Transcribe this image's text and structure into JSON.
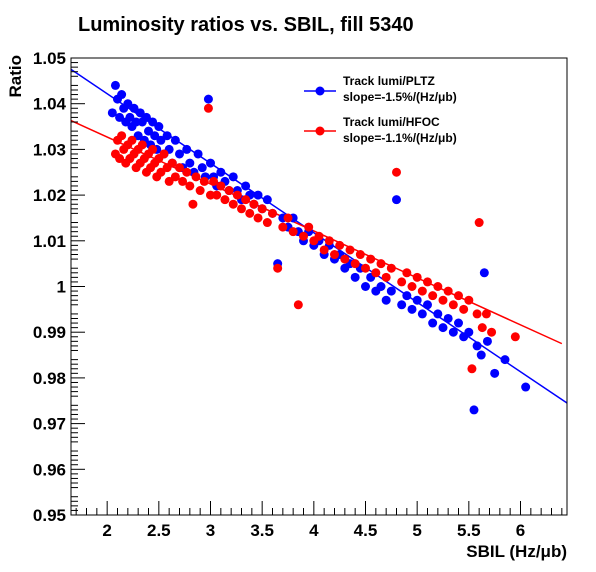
{
  "chart_data": {
    "type": "scatter",
    "title": "Luminosity ratios vs. SBIL, fill 5340",
    "xlabel": "SBIL (Hz/μb)",
    "ylabel": "Ratio",
    "xlim": [
      1.65,
      6.45
    ],
    "ylim": [
      0.95,
      1.05
    ],
    "xticks": [
      "2",
      "2.5",
      "3",
      "3.5",
      "4",
      "4.5",
      "5",
      "5.5",
      "6"
    ],
    "yticks": [
      "0.95",
      "0.96",
      "0.97",
      "0.98",
      "0.99",
      "1",
      "1.01",
      "1.02",
      "1.03",
      "1.04",
      "1.05"
    ],
    "grid": false,
    "legend_position": "top-right",
    "series": [
      {
        "name": "Track lumi/PLTZ",
        "slope_label": "slope=-1.5%/(Hz/μb)",
        "color": "#0000ff",
        "fit": {
          "x": [
            1.65,
            6.45
          ],
          "y": [
            1.0475,
            0.9745
          ]
        },
        "points": [
          [
            2.05,
            1.038
          ],
          [
            2.08,
            1.044
          ],
          [
            2.1,
            1.041
          ],
          [
            2.12,
            1.037
          ],
          [
            2.14,
            1.042
          ],
          [
            2.16,
            1.039
          ],
          [
            2.18,
            1.036
          ],
          [
            2.2,
            1.04
          ],
          [
            2.22,
            1.037
          ],
          [
            2.24,
            1.035
          ],
          [
            2.26,
            1.039
          ],
          [
            2.28,
            1.036
          ],
          [
            2.3,
            1.033
          ],
          [
            2.32,
            1.038
          ],
          [
            2.34,
            1.036
          ],
          [
            2.36,
            1.032
          ],
          [
            2.38,
            1.037
          ],
          [
            2.4,
            1.034
          ],
          [
            2.42,
            1.031
          ],
          [
            2.44,
            1.036
          ],
          [
            2.46,
            1.033
          ],
          [
            2.48,
            1.03
          ],
          [
            2.5,
            1.035
          ],
          [
            2.52,
            1.032
          ],
          [
            2.55,
            1.029
          ],
          [
            2.58,
            1.033
          ],
          [
            2.6,
            1.03
          ],
          [
            2.63,
            1.027
          ],
          [
            2.66,
            1.032
          ],
          [
            2.7,
            1.029
          ],
          [
            2.73,
            1.026
          ],
          [
            2.77,
            1.03
          ],
          [
            2.8,
            1.027
          ],
          [
            2.84,
            1.025
          ],
          [
            2.88,
            1.029
          ],
          [
            2.92,
            1.026
          ],
          [
            2.95,
            1.024
          ],
          [
            2.98,
            1.041
          ],
          [
            3.0,
            1.027
          ],
          [
            3.03,
            1.024
          ],
          [
            3.06,
            1.022
          ],
          [
            3.1,
            1.025
          ],
          [
            3.14,
            1.023
          ],
          [
            3.18,
            1.021
          ],
          [
            3.22,
            1.024
          ],
          [
            3.26,
            1.021
          ],
          [
            3.3,
            1.019
          ],
          [
            3.34,
            1.022
          ],
          [
            3.38,
            1.02
          ],
          [
            3.42,
            1.018
          ],
          [
            3.46,
            1.02
          ],
          [
            3.5,
            1.017
          ],
          [
            3.55,
            1.019
          ],
          [
            3.6,
            1.016
          ],
          [
            3.65,
            1.005
          ],
          [
            3.7,
            1.015
          ],
          [
            3.75,
            1.013
          ],
          [
            3.8,
            1.015
          ],
          [
            3.85,
            1.012
          ],
          [
            3.9,
            1.01
          ],
          [
            3.95,
            1.012
          ],
          [
            4.0,
            1.009
          ],
          [
            4.05,
            1.01
          ],
          [
            4.1,
            1.007
          ],
          [
            4.15,
            1.009
          ],
          [
            4.2,
            1.006
          ],
          [
            4.25,
            1.007
          ],
          [
            4.3,
            1.004
          ],
          [
            4.35,
            1.005
          ],
          [
            4.4,
            1.002
          ],
          [
            4.45,
            1.004
          ],
          [
            4.5,
            1.0
          ],
          [
            4.55,
            1.002
          ],
          [
            4.6,
            0.999
          ],
          [
            4.65,
            1.0
          ],
          [
            4.7,
            0.997
          ],
          [
            4.75,
            0.999
          ],
          [
            4.8,
            1.019
          ],
          [
            4.85,
            0.996
          ],
          [
            4.9,
            0.998
          ],
          [
            4.95,
            0.995
          ],
          [
            5.0,
            0.997
          ],
          [
            5.05,
            0.994
          ],
          [
            5.1,
            0.996
          ],
          [
            5.15,
            0.992
          ],
          [
            5.2,
            0.994
          ],
          [
            5.25,
            0.991
          ],
          [
            5.3,
            0.993
          ],
          [
            5.35,
            0.99
          ],
          [
            5.4,
            0.992
          ],
          [
            5.45,
            0.989
          ],
          [
            5.5,
            0.99
          ],
          [
            5.55,
            0.973
          ],
          [
            5.58,
            0.987
          ],
          [
            5.62,
            0.985
          ],
          [
            5.65,
            1.003
          ],
          [
            5.68,
            0.988
          ],
          [
            5.75,
            0.981
          ],
          [
            5.85,
            0.984
          ],
          [
            6.05,
            0.978
          ]
        ]
      },
      {
        "name": "Track lumi/HFOC",
        "slope_label": "slope=-1.1%/(Hz/μb)",
        "color": "#ff0000",
        "fit": {
          "x": [
            1.65,
            6.4
          ],
          "y": [
            1.0363,
            0.9875
          ]
        },
        "points": [
          [
            2.08,
            1.029
          ],
          [
            2.1,
            1.032
          ],
          [
            2.12,
            1.028
          ],
          [
            2.14,
            1.033
          ],
          [
            2.16,
            1.03
          ],
          [
            2.18,
            1.027
          ],
          [
            2.2,
            1.031
          ],
          [
            2.22,
            1.028
          ],
          [
            2.24,
            1.032
          ],
          [
            2.26,
            1.029
          ],
          [
            2.28,
            1.026
          ],
          [
            2.3,
            1.03
          ],
          [
            2.32,
            1.027
          ],
          [
            2.34,
            1.031
          ],
          [
            2.36,
            1.028
          ],
          [
            2.38,
            1.025
          ],
          [
            2.4,
            1.029
          ],
          [
            2.42,
            1.026
          ],
          [
            2.44,
            1.03
          ],
          [
            2.46,
            1.027
          ],
          [
            2.48,
            1.024
          ],
          [
            2.5,
            1.028
          ],
          [
            2.52,
            1.025
          ],
          [
            2.55,
            1.029
          ],
          [
            2.58,
            1.026
          ],
          [
            2.6,
            1.023
          ],
          [
            2.63,
            1.027
          ],
          [
            2.66,
            1.024
          ],
          [
            2.7,
            1.026
          ],
          [
            2.73,
            1.023
          ],
          [
            2.77,
            1.025
          ],
          [
            2.8,
            1.022
          ],
          [
            2.83,
            1.018
          ],
          [
            2.86,
            1.024
          ],
          [
            2.9,
            1.021
          ],
          [
            2.94,
            1.023
          ],
          [
            2.98,
            1.039
          ],
          [
            3.0,
            1.02
          ],
          [
            3.03,
            1.023
          ],
          [
            3.06,
            1.02
          ],
          [
            3.1,
            1.022
          ],
          [
            3.14,
            1.019
          ],
          [
            3.18,
            1.021
          ],
          [
            3.22,
            1.018
          ],
          [
            3.26,
            1.02
          ],
          [
            3.3,
            1.017
          ],
          [
            3.34,
            1.019
          ],
          [
            3.38,
            1.016
          ],
          [
            3.42,
            1.018
          ],
          [
            3.46,
            1.015
          ],
          [
            3.5,
            1.017
          ],
          [
            3.55,
            1.014
          ],
          [
            3.6,
            1.016
          ],
          [
            3.65,
            1.004
          ],
          [
            3.7,
            1.013
          ],
          [
            3.75,
            1.015
          ],
          [
            3.8,
            1.012
          ],
          [
            3.85,
            0.996
          ],
          [
            3.9,
            1.011
          ],
          [
            3.95,
            1.013
          ],
          [
            4.0,
            1.01
          ],
          [
            4.05,
            1.011
          ],
          [
            4.1,
            1.008
          ],
          [
            4.15,
            1.01
          ],
          [
            4.2,
            1.007
          ],
          [
            4.25,
            1.009
          ],
          [
            4.3,
            1.006
          ],
          [
            4.35,
            1.008
          ],
          [
            4.4,
            1.005
          ],
          [
            4.45,
            1.007
          ],
          [
            4.5,
            1.004
          ],
          [
            4.55,
            1.006
          ],
          [
            4.6,
            1.003
          ],
          [
            4.65,
            1.005
          ],
          [
            4.7,
            1.002
          ],
          [
            4.75,
            1.004
          ],
          [
            4.8,
            1.025
          ],
          [
            4.85,
            1.001
          ],
          [
            4.9,
            1.003
          ],
          [
            4.95,
            1.0
          ],
          [
            5.0,
            1.002
          ],
          [
            5.05,
            0.999
          ],
          [
            5.1,
            1.001
          ],
          [
            5.15,
            0.998
          ],
          [
            5.2,
            1.0
          ],
          [
            5.25,
            0.997
          ],
          [
            5.3,
            0.999
          ],
          [
            5.35,
            0.996
          ],
          [
            5.4,
            0.998
          ],
          [
            5.45,
            0.995
          ],
          [
            5.5,
            0.997
          ],
          [
            5.53,
            0.982
          ],
          [
            5.58,
            0.994
          ],
          [
            5.6,
            1.014
          ],
          [
            5.63,
            0.991
          ],
          [
            5.67,
            0.994
          ],
          [
            5.72,
            0.99
          ],
          [
            5.95,
            0.989
          ]
        ]
      }
    ]
  }
}
